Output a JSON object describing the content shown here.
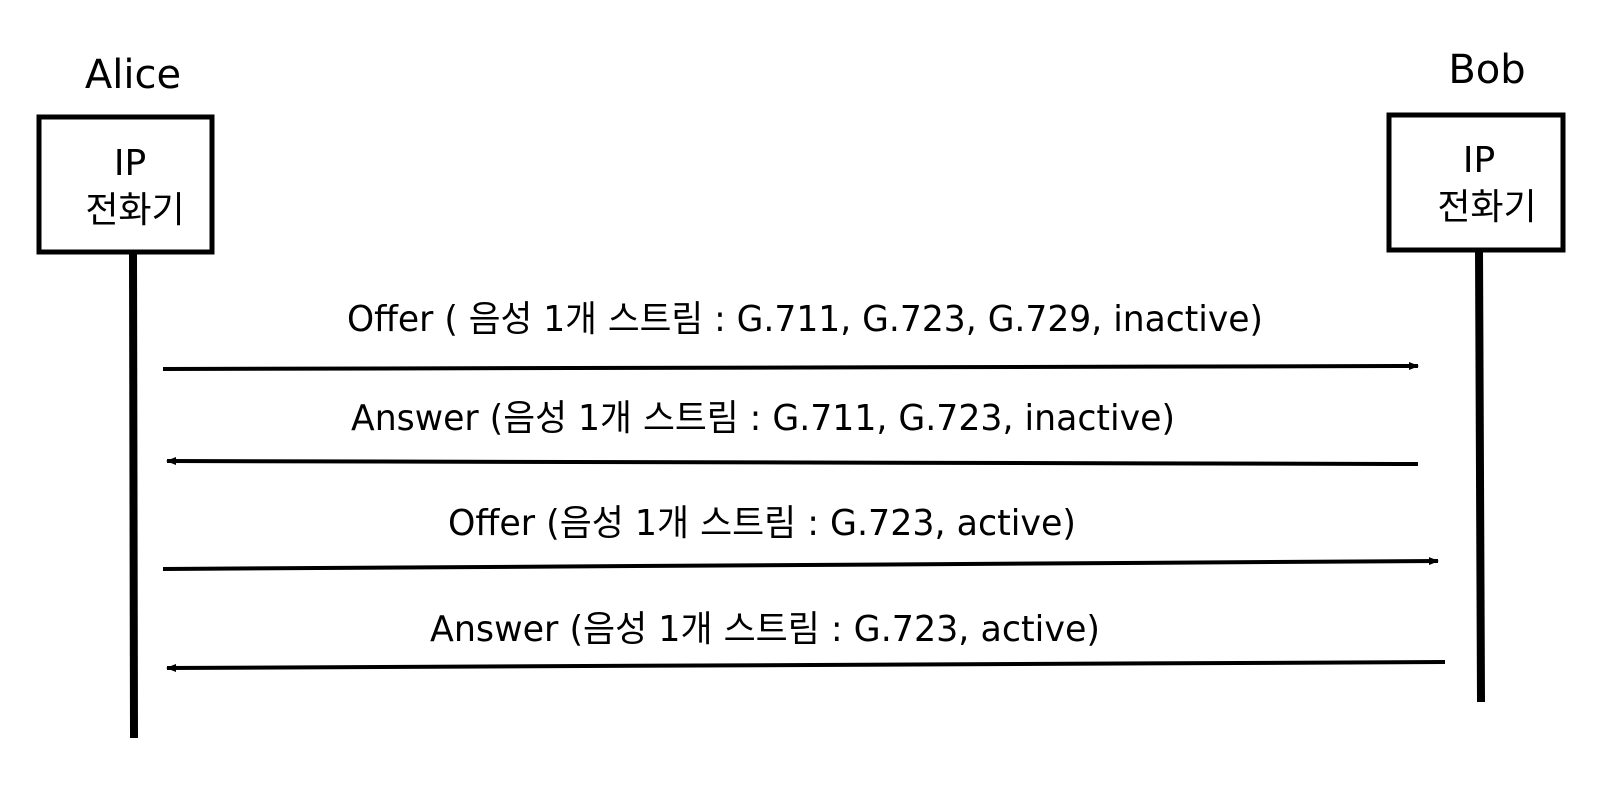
{
  "participants": [
    {
      "name": "Alice",
      "device": [
        "IP",
        "전화기"
      ]
    },
    {
      "name": "Bob",
      "device": [
        "IP",
        "전화기"
      ]
    }
  ],
  "messages": [
    {
      "from": "Alice",
      "to": "Bob",
      "label": "Offer ( 음성 1개 스트림 : G.711, G.723, G.729, inactive)"
    },
    {
      "from": "Bob",
      "to": "Alice",
      "label": "Answer (음성 1개 스트림 : G.711, G.723, inactive)"
    },
    {
      "from": "Alice",
      "to": "Bob",
      "label": "Offer (음성 1개 스트림 : G.723, active)"
    },
    {
      "from": "Bob",
      "to": "Alice",
      "label": "Answer (음성 1개 스트림 : G.723, active)"
    }
  ],
  "colors": {
    "line": "#000000",
    "background": "#ffffff"
  }
}
